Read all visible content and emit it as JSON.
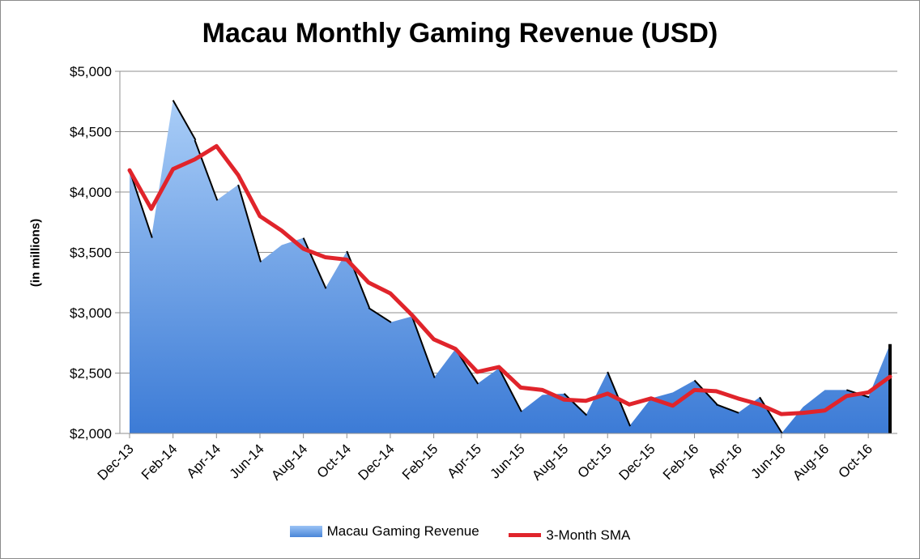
{
  "chart_data": {
    "type": "area",
    "title": "Macau Monthly Gaming Revenue (USD)",
    "ylabel": "(in millions)",
    "xlabel": "",
    "ylim": [
      2000,
      5000
    ],
    "y_ticks": [
      "$2,000",
      "$2,500",
      "$3,000",
      "$3,500",
      "$4,000",
      "$4,500",
      "$5,000"
    ],
    "y_tick_values": [
      2000,
      2500,
      3000,
      3500,
      4000,
      4500,
      5000
    ],
    "x": [
      "Dec-13",
      "Jan-14",
      "Feb-14",
      "Mar-14",
      "Apr-14",
      "May-14",
      "Jun-14",
      "Jul-14",
      "Aug-14",
      "Sep-14",
      "Oct-14",
      "Nov-14",
      "Dec-14",
      "Jan-15",
      "Feb-15",
      "Mar-15",
      "Apr-15",
      "May-15",
      "Jun-15",
      "Jul-15",
      "Aug-15",
      "Sep-15",
      "Oct-15",
      "Nov-15",
      "Dec-15",
      "Jan-16",
      "Feb-16",
      "Mar-16",
      "Apr-16",
      "May-16",
      "Jun-16",
      "Jul-16",
      "Aug-16",
      "Sep-16",
      "Oct-16",
      "Nov-16"
    ],
    "x_tick_labels": [
      "Dec-13",
      "Feb-14",
      "Apr-14",
      "Jun-14",
      "Aug-14",
      "Oct-14",
      "Dec-14",
      "Feb-15",
      "Apr-15",
      "Jun-15",
      "Aug-15",
      "Oct-15",
      "Dec-15",
      "Feb-16",
      "Apr-16",
      "Jun-16",
      "Aug-16",
      "Oct-16"
    ],
    "grid": true,
    "legend_position": "bottom",
    "series": [
      {
        "name": "Macau Gaming Revenue",
        "kind": "area",
        "color_top": "#a9cdf7",
        "color_bottom": "#3c7bd6",
        "values": [
          4180,
          3620,
          4760,
          4430,
          3930,
          4060,
          3420,
          3560,
          3620,
          3200,
          3510,
          3040,
          2920,
          2970,
          2460,
          2700,
          2410,
          2540,
          2180,
          2320,
          2330,
          2150,
          2510,
          2060,
          2290,
          2340,
          2440,
          2240,
          2170,
          2300,
          1990,
          2220,
          2360,
          2360,
          2300,
          2740
        ]
      },
      {
        "name": "3-Month SMA",
        "kind": "line",
        "color": "#e0242b",
        "values": [
          4180,
          3860,
          4190,
          4270,
          4380,
          4140,
          3800,
          3680,
          3530,
          3460,
          3440,
          3250,
          3160,
          2980,
          2780,
          2700,
          2510,
          2550,
          2380,
          2360,
          2280,
          2270,
          2330,
          2240,
          2290,
          2230,
          2360,
          2350,
          2290,
          2240,
          2160,
          2170,
          2190,
          2310,
          2340,
          2470
        ]
      }
    ]
  }
}
